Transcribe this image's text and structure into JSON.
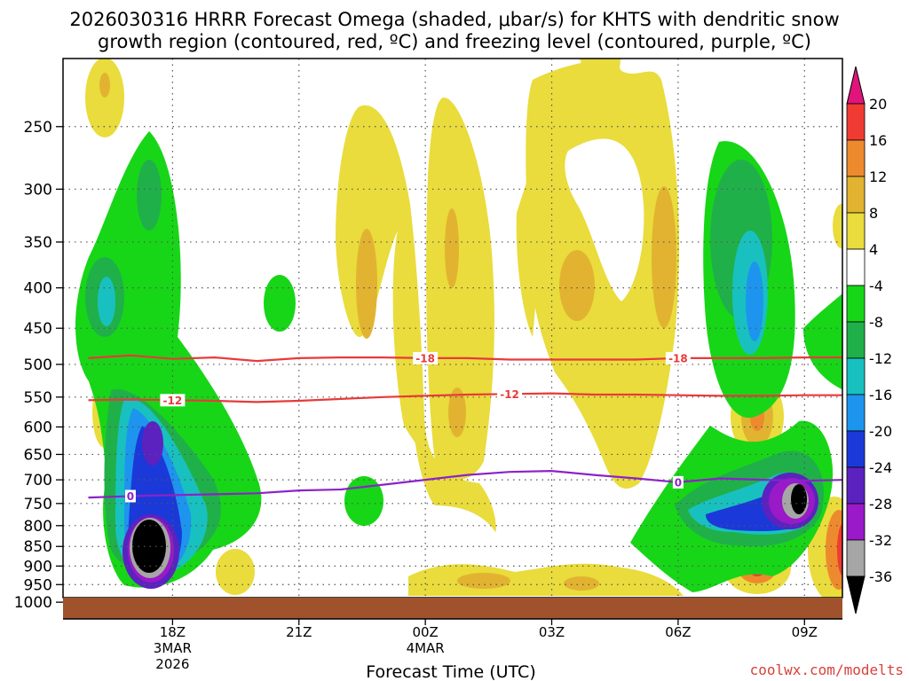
{
  "title_line1": "2026030316 HRRR Forecast Omega (shaded, μbar/s) for KHTS with dendritic snow",
  "title_line2": "growth region (contoured, red, ºC) and freezing level (contoured, purple, ºC)",
  "credit": "coolwx.com/modelts",
  "chart_data": {
    "type": "heatmap",
    "xlabel": "Forecast Time (UTC)",
    "ylabel": "",
    "y_scale": "log",
    "y_ticks": [
      250,
      300,
      350,
      400,
      450,
      500,
      550,
      600,
      650,
      700,
      750,
      800,
      850,
      900,
      950,
      1000
    ],
    "x_ticks": [
      {
        "t": 2,
        "label": "18Z",
        "sub1": "3MAR",
        "sub2": "2026"
      },
      {
        "t": 5,
        "label": "21Z",
        "sub1": "",
        "sub2": ""
      },
      {
        "t": 8,
        "label": "00Z",
        "sub1": "4MAR",
        "sub2": ""
      },
      {
        "t": 11,
        "label": "03Z",
        "sub1": "",
        "sub2": ""
      },
      {
        "t": 14,
        "label": "06Z",
        "sub1": "",
        "sub2": ""
      },
      {
        "t": 17,
        "label": "09Z",
        "sub1": "",
        "sub2": ""
      }
    ],
    "colorbar": {
      "levels": [
        -36,
        -32,
        -28,
        -24,
        -20,
        -16,
        -12,
        -8,
        -4,
        4,
        8,
        12,
        16,
        20
      ],
      "colors": [
        "#000000",
        "#a6a6a6",
        "#9a19c8",
        "#5b22c0",
        "#1b39d9",
        "#1d95ee",
        "#18c1bf",
        "#20b04a",
        "#17d617",
        "#ffffff",
        "#e9dc3c",
        "#e2b331",
        "#ee8a2e",
        "#f03b33",
        "#e0147a"
      ]
    },
    "dgz_contours": [
      {
        "level": -18,
        "label": "-18",
        "color": "#e83a3a",
        "points": [
          [
            0,
            491
          ],
          [
            1,
            487
          ],
          [
            2,
            492
          ],
          [
            3,
            490
          ],
          [
            4,
            495
          ],
          [
            5,
            491
          ],
          [
            6,
            490
          ],
          [
            7,
            490
          ],
          [
            8,
            491
          ],
          [
            9,
            491
          ],
          [
            10,
            493
          ],
          [
            11,
            493
          ],
          [
            12,
            493
          ],
          [
            13,
            493
          ],
          [
            14,
            491
          ],
          [
            15,
            491
          ],
          [
            16,
            491
          ],
          [
            17,
            490
          ],
          [
            18,
            490
          ]
        ]
      },
      {
        "level": -12,
        "label": "-12",
        "color": "#e83a3a",
        "points": [
          [
            0,
            555
          ],
          [
            1,
            554
          ],
          [
            2,
            555
          ],
          [
            3,
            556
          ],
          [
            4,
            558
          ],
          [
            5,
            556
          ],
          [
            6,
            553
          ],
          [
            7,
            550
          ],
          [
            8,
            548
          ],
          [
            9,
            546
          ],
          [
            10,
            545
          ],
          [
            11,
            544
          ],
          [
            12,
            546
          ],
          [
            13,
            546
          ],
          [
            14,
            547
          ],
          [
            15,
            548
          ],
          [
            16,
            548
          ],
          [
            17,
            547
          ],
          [
            18,
            547
          ]
        ]
      }
    ],
    "freezing_level": {
      "level": 0,
      "label": "0",
      "color": "#8b23c8",
      "points": [
        [
          0,
          737
        ],
        [
          1,
          734
        ],
        [
          2,
          732
        ],
        [
          3,
          730
        ],
        [
          4,
          728
        ],
        [
          5,
          722
        ],
        [
          6,
          720
        ],
        [
          7,
          710
        ],
        [
          8,
          700
        ],
        [
          9,
          690
        ],
        [
          10,
          684
        ],
        [
          11,
          682
        ],
        [
          12,
          690
        ],
        [
          13,
          697
        ],
        [
          14,
          705
        ],
        [
          15,
          697
        ],
        [
          16,
          700
        ],
        [
          17,
          702
        ],
        [
          18,
          700
        ]
      ]
    },
    "omega_features": [
      {
        "t": 2,
        "p": 870,
        "min": -40,
        "note": "strong upward motion core"
      },
      {
        "t": 2,
        "p": 620,
        "min": -30
      },
      {
        "t": 16.8,
        "p": 735,
        "min": -40
      },
      {
        "t": 16.3,
        "p": 380,
        "min": -18
      },
      {
        "t": 7.6,
        "p": 420,
        "max": 9
      },
      {
        "t": 10.8,
        "p": 360,
        "max": 9
      },
      {
        "t": 13.8,
        "p": 360,
        "max": 10
      },
      {
        "t": 16,
        "p": 585,
        "max": 17
      },
      {
        "t": 16,
        "p": 910,
        "max": 18
      },
      {
        "t": 17.8,
        "p": 880,
        "max": 16
      }
    ],
    "t_range": [
      -0.6,
      17.9
    ],
    "p_range": [
      205,
      1050
    ]
  }
}
